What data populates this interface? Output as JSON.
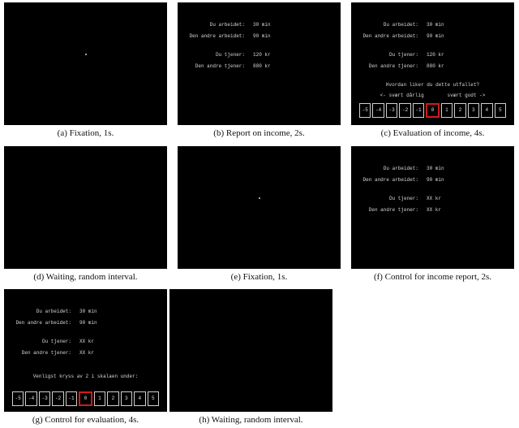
{
  "panels": [
    {
      "id": "a",
      "caption": "(a)  Fixation, 1s.",
      "type": "fixation"
    },
    {
      "id": "b",
      "caption": "(b)  Report on income, 2s.",
      "type": "report",
      "rows1": [
        {
          "label": "Du arbeidet:",
          "value": "30 min"
        },
        {
          "label": "Den andre arbeidet:",
          "value": "90 min"
        }
      ],
      "rows2": [
        {
          "label": "Du tjener:",
          "value": "120 kr"
        },
        {
          "label": "Den andre tjener:",
          "value": "880 kr"
        }
      ]
    },
    {
      "id": "c",
      "caption": "(c)  Evaluation of income, 4s.",
      "type": "evaluation",
      "rows1": [
        {
          "label": "Du arbeidet:",
          "value": "30 min"
        },
        {
          "label": "Den andre arbeidet:",
          "value": "90 min"
        }
      ],
      "rows2": [
        {
          "label": "Du tjener:",
          "value": "120 kr"
        },
        {
          "label": "Den andre tjener:",
          "value": "880 kr"
        }
      ],
      "question": "Hvordan liker du dette utfallet?",
      "anchors": "<- svært dårlig        svært godt ->",
      "scale": [
        "-5",
        "-4",
        "-3",
        "-2",
        "-1",
        "0",
        "1",
        "2",
        "3",
        "4",
        "5"
      ],
      "selected": "0"
    },
    {
      "id": "d",
      "caption": "(d)  Waiting, random interval.",
      "type": "blank"
    },
    {
      "id": "e",
      "caption": "(e)  Fixation, 1s.",
      "type": "fixation"
    },
    {
      "id": "f",
      "caption": "(f)  Control for income report, 2s.",
      "type": "report",
      "rows1": [
        {
          "label": "Du arbeidet:",
          "value": "30 min"
        },
        {
          "label": "Den andre arbeidet:",
          "value": "90 min"
        }
      ],
      "rows2": [
        {
          "label": "Du tjener:",
          "value": "XX kr"
        },
        {
          "label": "Den andre tjener:",
          "value": "XX kr"
        }
      ]
    },
    {
      "id": "g",
      "caption": "(g)  Control for evaluation, 4s.",
      "type": "evaluation",
      "rows1": [
        {
          "label": "Du arbeidet:",
          "value": "30 min"
        },
        {
          "label": "Den andre arbeidet:",
          "value": "90 min"
        }
      ],
      "rows2": [
        {
          "label": "Du tjener:",
          "value": "XX kr"
        },
        {
          "label": "Den andre tjener:",
          "value": "XX kr"
        }
      ],
      "question": "Venligst kryss av 2 i skalaen under:",
      "anchors": "",
      "scale": [
        "-5",
        "-4",
        "-3",
        "-2",
        "-1",
        "0",
        "1",
        "2",
        "3",
        "4",
        "5"
      ],
      "selected": "0"
    },
    {
      "id": "h",
      "caption": "(h)  Waiting, random interval.",
      "type": "blank"
    }
  ]
}
